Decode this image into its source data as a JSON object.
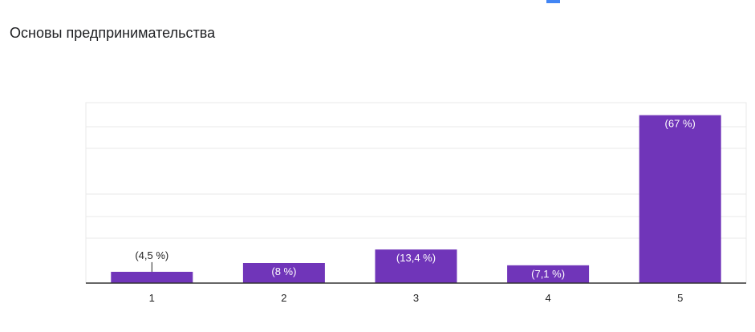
{
  "question": {
    "title": "Основы предпринимательства"
  },
  "colors": {
    "bar": "#7035b9",
    "grid": "#e8e8e8",
    "axis": "#333333",
    "label_inside": "#ffffff",
    "label_outside": "#222222",
    "title": "#202124",
    "top_marker": "#4285f4"
  },
  "chart_data": {
    "type": "bar",
    "title": "",
    "xlabel": "",
    "ylabel": "",
    "categories": [
      "1",
      "2",
      "3",
      "4",
      "5"
    ],
    "values": [
      4.5,
      8,
      13.4,
      7.1,
      67
    ],
    "data_labels": [
      "(4,5 %)",
      "(8 %)",
      "(13,4 %)",
      "(7,1 %)",
      "(67 %)"
    ],
    "ylim": [
      0,
      72
    ],
    "grid": true,
    "legend": "none"
  }
}
